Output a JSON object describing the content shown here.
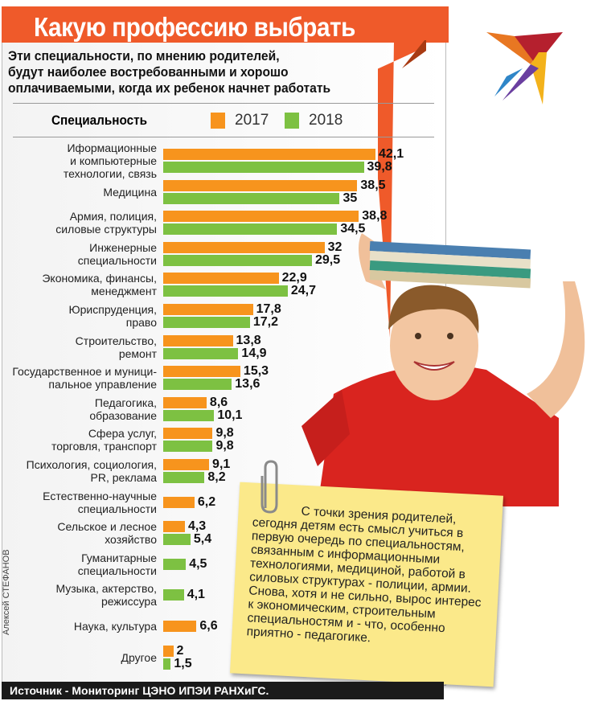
{
  "header": {
    "title": "Какую профессию выбрать",
    "subtitle_lines": [
      "Эти специальности, по мнению родителей,",
      "будут наиболее востребованными и хорошо",
      "оплачиваемыми, когда их ребенок начнет работать"
    ]
  },
  "colors": {
    "s2017": "#f7941d",
    "s2018": "#7dc142",
    "title_bg": "#ef5a2a"
  },
  "chart_data": {
    "type": "bar",
    "orientation": "horizontal",
    "title": "Какую профессию выбрать",
    "category_header": "Специальность",
    "legend": [
      "2017",
      "2018"
    ],
    "categories": [
      [
        "Иформационные",
        "и компьютерные",
        "технологии, связь"
      ],
      [
        "Медицина"
      ],
      [
        "Армия, полиция,",
        "силовые структуры"
      ],
      [
        "Инженерные",
        "специальности"
      ],
      [
        "Экономика, финансы,",
        "менеджмент"
      ],
      [
        "Юриспруденция,",
        "право"
      ],
      [
        "Строительство,",
        "ремонт"
      ],
      [
        "Государственное и муници-",
        "пальное управление"
      ],
      [
        "Педагогика,",
        "образование"
      ],
      [
        "Сфера услуг,",
        "торговля, транспорт"
      ],
      [
        "Психология, социология,",
        "PR, реклама"
      ],
      [
        "Естественно-научные",
        "специальности"
      ],
      [
        "Сельское и лесное",
        "хозяйство"
      ],
      [
        "Гуманитарные",
        "специальности"
      ],
      [
        "Музыка, актерство,",
        "режиссура"
      ],
      [
        "Наука, культура"
      ],
      [
        "Другое"
      ]
    ],
    "series": [
      {
        "name": "2017",
        "values": [
          42.1,
          38.5,
          38.8,
          32,
          22.9,
          17.8,
          13.8,
          15.3,
          8.6,
          9.8,
          9.1,
          6.2,
          4.3,
          null,
          null,
          6.6,
          2
        ]
      },
      {
        "name": "2018",
        "values": [
          39.8,
          35,
          34.5,
          29.5,
          24.7,
          17.2,
          14.9,
          13.6,
          10.1,
          9.8,
          8.2,
          null,
          5.4,
          4.5,
          4.1,
          null,
          1.5
        ]
      }
    ],
    "value_labels": [
      [
        "42,1",
        "39,8"
      ],
      [
        "38,5",
        "35"
      ],
      [
        "38,8",
        "34,5"
      ],
      [
        "32",
        "29,5"
      ],
      [
        "22,9",
        "24,7"
      ],
      [
        "17,8",
        "17,2"
      ],
      [
        "13,8",
        "14,9"
      ],
      [
        "15,3",
        "13,6"
      ],
      [
        "8,6",
        "10,1"
      ],
      [
        "9,8",
        "9,8"
      ],
      [
        "9,1",
        "8,2"
      ],
      [
        "6,2",
        null
      ],
      [
        "4,3",
        "5,4"
      ],
      [
        null,
        "4,5"
      ],
      [
        null,
        "4,1"
      ],
      [
        "6,6",
        null
      ],
      [
        "2",
        "1,5"
      ]
    ]
  },
  "note": "С точки зрения родителей, сегодня детям есть смысл учиться в первую очередь по специальностям, связанным с информационными технологиями, медициной, работой в силовых структурах - полиции, армии. Снова, хотя и не сильно, вырос интерес к экономическим, строительным специальностям и - что, особенно приятно - педагогике.",
  "author": "Алексей СТЕФАНОВ",
  "source": "Источник - Мониторинг ЦЭНО ИПЭИ РАНХиГС."
}
